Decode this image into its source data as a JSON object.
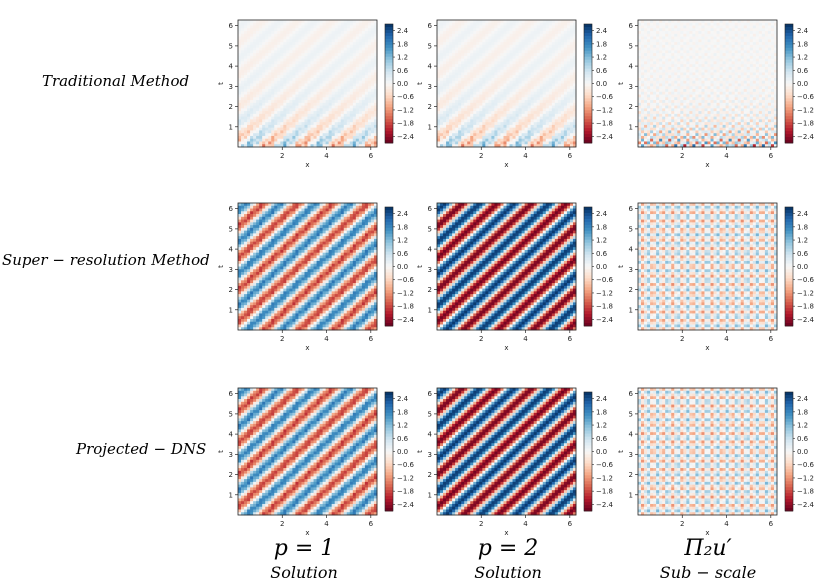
{
  "rows": [
    {
      "label": "Traditional Method"
    },
    {
      "label": "Super − resolution Method"
    },
    {
      "label": "Projected − DNS"
    }
  ],
  "columns": [
    {
      "title": "p = 1",
      "subtitle": "Solution"
    },
    {
      "title": "p = 2",
      "subtitle": "Solution"
    },
    {
      "title": "Π₂u′",
      "subtitle": "Sub − scale"
    }
  ],
  "chart_data": {
    "type": "heatmap",
    "xlabel": "x",
    "ylabel": "t",
    "xticks": [
      2,
      4,
      6
    ],
    "yticks": [
      1,
      2,
      3,
      4,
      5,
      6
    ],
    "xlim": [
      0,
      6.28
    ],
    "ylim": [
      0,
      6.28
    ],
    "colormap": "RdBu",
    "colorbar_ticks": [
      "2.4",
      "1.8",
      "1.2",
      "0.6",
      "0.0",
      "−0.6",
      "−1.2",
      "−1.8",
      "−2.4"
    ],
    "colorbar_range": [
      -2.7,
      2.7
    ],
    "panels": [
      {
        "row": 0,
        "col": 0,
        "pattern": "advecting-wave-decaying",
        "amplitude": 0.4,
        "wavenumber": 4,
        "fine_noise": 0.5
      },
      {
        "row": 0,
        "col": 1,
        "pattern": "advecting-wave-decaying",
        "amplitude": 0.4,
        "wavenumber": 4,
        "fine_noise": 0.5
      },
      {
        "row": 0,
        "col": 2,
        "pattern": "subscale-decaying",
        "amplitude": 0.05,
        "wavenumber": 16,
        "fine_noise": 1.0
      },
      {
        "row": 1,
        "col": 0,
        "pattern": "advecting-wave",
        "amplitude": 1.8,
        "wavenumber": 4,
        "fine_noise": 0.5
      },
      {
        "row": 1,
        "col": 1,
        "pattern": "advecting-wave",
        "amplitude": 2.6,
        "wavenumber": 4,
        "fine_noise": 0.0
      },
      {
        "row": 1,
        "col": 2,
        "pattern": "subscale",
        "amplitude": 0.8,
        "wavenumber": 16,
        "fine_noise": 1.0
      },
      {
        "row": 2,
        "col": 0,
        "pattern": "advecting-wave",
        "amplitude": 1.8,
        "wavenumber": 4,
        "fine_noise": 0.5
      },
      {
        "row": 2,
        "col": 1,
        "pattern": "advecting-wave",
        "amplitude": 2.6,
        "wavenumber": 4,
        "fine_noise": 0.0
      },
      {
        "row": 2,
        "col": 2,
        "pattern": "subscale",
        "amplitude": 0.8,
        "wavenumber": 16,
        "fine_noise": 1.0
      }
    ]
  }
}
